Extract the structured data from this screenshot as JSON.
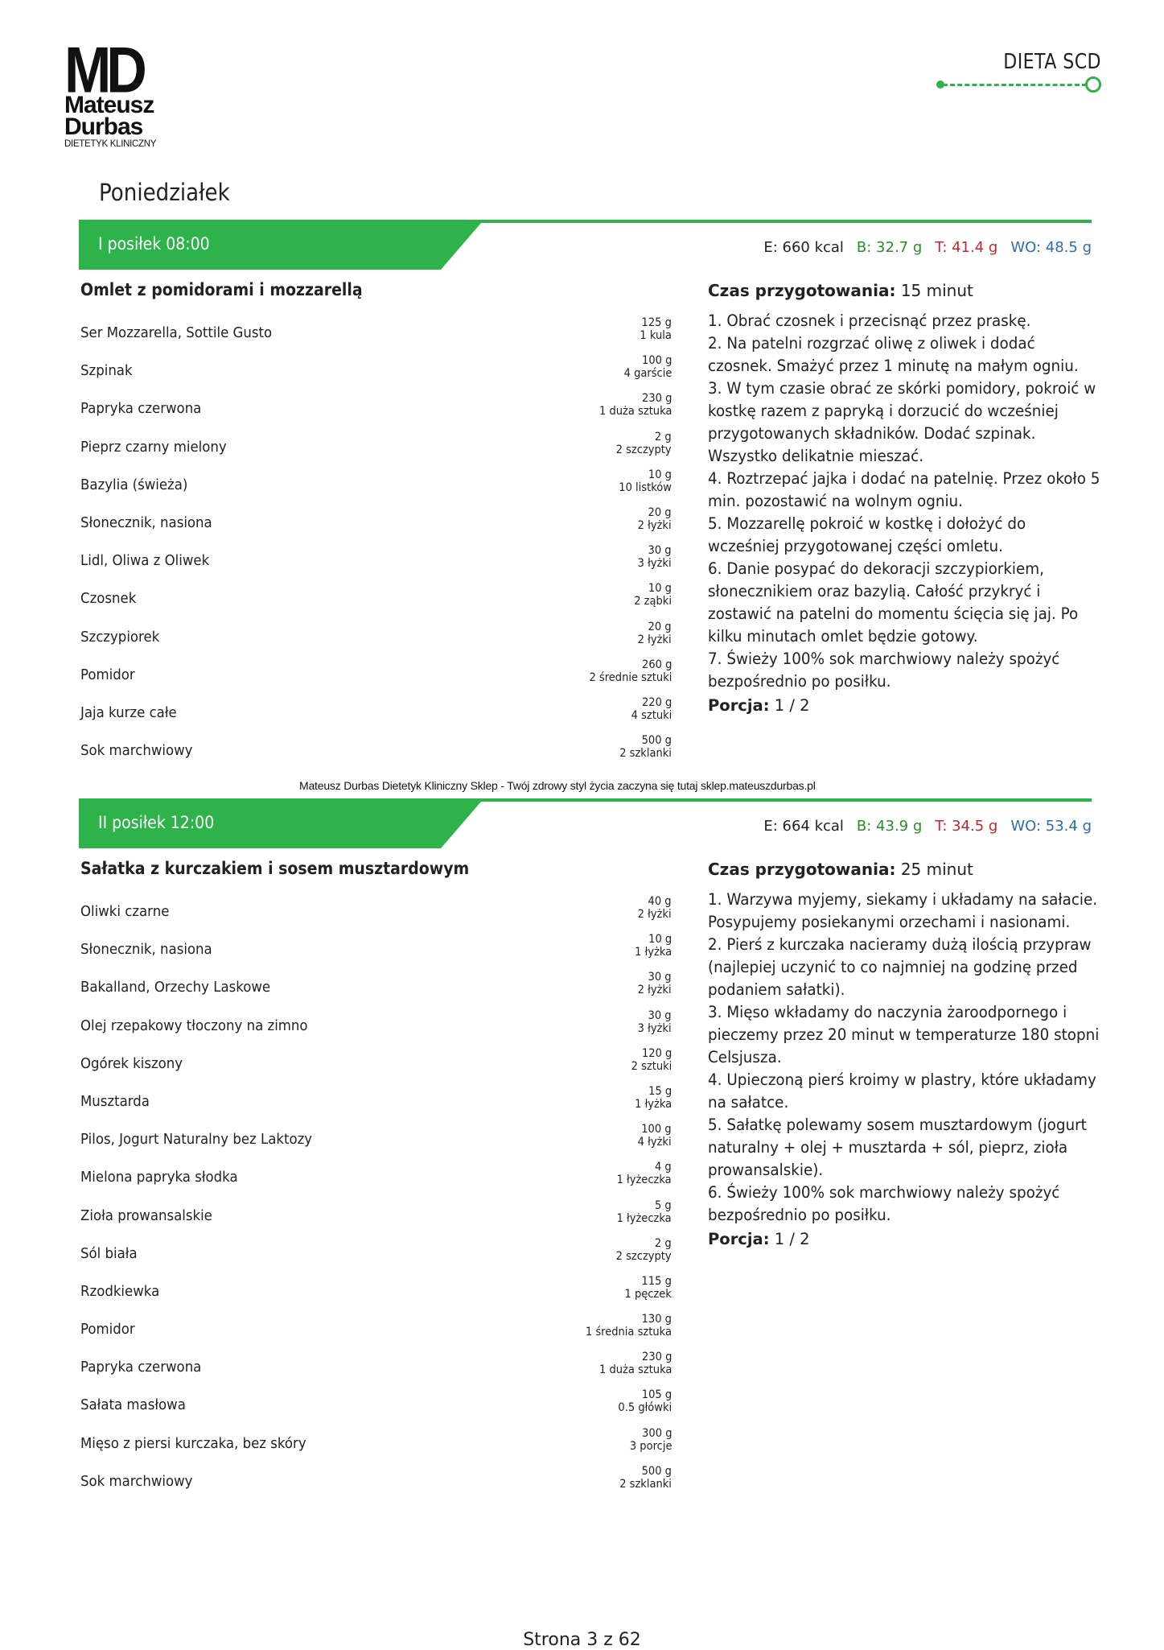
{
  "logo": {
    "mark": "MD",
    "name_line1": "Mateusz",
    "name_line2": "Durbas",
    "subtitle": "DIETETYK KLINICZNY"
  },
  "brand": {
    "title": "DIETA SCD",
    "accent": "#2db34a"
  },
  "day": "Poniedziałek",
  "meals": [
    {
      "label": "I posiłek 08:00",
      "macros": {
        "e": "E: 660 kcal",
        "b": "B: 32.7 g",
        "t": "T: 41.4 g",
        "wo": "WO: 48.5 g"
      },
      "dish": "Omlet z pomidorami i mozzarellą",
      "ingredients": [
        {
          "name": "Ser Mozzarella, Sottile Gusto",
          "grams": "125 g",
          "measure": "1 kula"
        },
        {
          "name": "Szpinak",
          "grams": "100 g",
          "measure": "4 garście"
        },
        {
          "name": "Papryka czerwona",
          "grams": "230 g",
          "measure": "1 duża sztuka"
        },
        {
          "name": "Pieprz czarny mielony",
          "grams": "2 g",
          "measure": "2 szczypty"
        },
        {
          "name": "Bazylia (świeża)",
          "grams": "10 g",
          "measure": "10 listków"
        },
        {
          "name": "Słonecznik, nasiona",
          "grams": "20 g",
          "measure": "2 łyżki"
        },
        {
          "name": "Lidl, Oliwa z Oliwek",
          "grams": "30 g",
          "measure": "3 łyżki"
        },
        {
          "name": "Czosnek",
          "grams": "10 g",
          "measure": "2 ząbki"
        },
        {
          "name": "Szczypiorek",
          "grams": "20 g",
          "measure": "2 łyżki"
        },
        {
          "name": "Pomidor",
          "grams": "260 g",
          "measure": "2 średnie sztuki"
        },
        {
          "name": "Jaja kurze całe",
          "grams": "220 g",
          "measure": "4 sztuki"
        },
        {
          "name": "Sok marchwiowy",
          "grams": "500 g",
          "measure": "2 szklanki"
        }
      ],
      "prep_label": "Czas przygotowania:",
      "prep_time": "15 minut",
      "steps": "1. Obrać czosnek i przecisnąć przez praskę.\n2. Na patelni rozgrzać oliwę z oliwek i dodać czosnek. Smażyć przez 1 minutę na małym ogniu.\n3. W tym czasie obrać ze skórki pomidory, pokroić w kostkę razem z papryką i dorzucić do wcześniej przygotowanych składników. Dodać szpinak. Wszystko delikatnie mieszać.\n4. Roztrzepać jajka i dodać na patelnię. Przez około 5 min. pozostawić na wolnym ogniu.\n5. Mozzarellę pokroić w kostkę i dołożyć do wcześniej przygotowanej części omletu.\n6. Danie posypać do dekoracji szczypiorkiem, słonecznikiem oraz bazylią. Całość przykryć i zostawić na patelni do momentu ścięcia się jaj. Po kilku minutach omlet będzie gotowy.\n7. Świeży 100% sok marchwiowy należy spożyć bezpośrednio po posiłku.",
      "portion_label": "Porcja:",
      "portion": "1 / 2"
    },
    {
      "label": "II posiłek 12:00",
      "macros": {
        "e": "E: 664 kcal",
        "b": "B: 43.9 g",
        "t": "T: 34.5 g",
        "wo": "WO: 53.4 g"
      },
      "dish": "Sałatka z kurczakiem i sosem musztardowym",
      "ingredients": [
        {
          "name": "Oliwki czarne",
          "grams": "40 g",
          "measure": "2 łyżki"
        },
        {
          "name": "Słonecznik, nasiona",
          "grams": "10 g",
          "measure": "1 łyżka"
        },
        {
          "name": "Bakalland, Orzechy Laskowe",
          "grams": "30 g",
          "measure": "2 łyżki"
        },
        {
          "name": "Olej rzepakowy tłoczony na zimno",
          "grams": "30 g",
          "measure": "3 łyżki"
        },
        {
          "name": "Ogórek kiszony",
          "grams": "120 g",
          "measure": "2 sztuki"
        },
        {
          "name": "Musztarda",
          "grams": "15 g",
          "measure": "1 łyżka"
        },
        {
          "name": "Pilos, Jogurt Naturalny bez Laktozy",
          "grams": "100 g",
          "measure": "4 łyżki"
        },
        {
          "name": "Mielona papryka słodka",
          "grams": "4 g",
          "measure": "1 łyżeczka"
        },
        {
          "name": "Zioła prowansalskie",
          "grams": "5 g",
          "measure": "1 łyżeczka"
        },
        {
          "name": "Sól biała",
          "grams": "2 g",
          "measure": "2 szczypty"
        },
        {
          "name": "Rzodkiewka",
          "grams": "115 g",
          "measure": "1 pęczek"
        },
        {
          "name": "Pomidor",
          "grams": "130 g",
          "measure": "1 średnia sztuka"
        },
        {
          "name": "Papryka czerwona",
          "grams": "230 g",
          "measure": "1 duża sztuka"
        },
        {
          "name": "Sałata masłowa",
          "grams": "105 g",
          "measure": "0.5 główki"
        },
        {
          "name": "Mięso z piersi kurczaka, bez skóry",
          "grams": "300 g",
          "measure": "3 porcje"
        },
        {
          "name": "Sok marchwiowy",
          "grams": "500 g",
          "measure": "2 szklanki"
        }
      ],
      "prep_label": "Czas przygotowania:",
      "prep_time": "25 minut",
      "steps": "1. Warzywa myjemy, siekamy i układamy na sałacie. Posypujemy posiekanymi orzechami i nasionami.\n2. Pierś z kurczaka nacieramy dużą ilością przypraw (najlepiej uczynić to co najmniej na godzinę przed podaniem sałatki).\n3. Mięso wkładamy do naczynia żaroodpornego i pieczemy przez 20 minut w temperaturze 180 stopni Celsjusza.\n4. Upieczoną pierś kroimy w plastry, które układamy na sałatce.\n5. Sałatkę polewamy sosem musztardowym (jogurt naturalny + olej + musztarda + sól, pieprz, zioła prowansalskie).\n6. Świeży 100% sok marchwiowy należy spożyć bezpośrednio po posiłku.",
      "portion_label": "Porcja:",
      "portion": "1 / 2"
    }
  ],
  "overlay_text": "Mateusz Durbas Dietetyk Kliniczny Sklep - Twój zdrowy styl życia zaczyna się tutaj sklep.mateuszdurbas.pl",
  "footer": "Strona 3 z 62"
}
